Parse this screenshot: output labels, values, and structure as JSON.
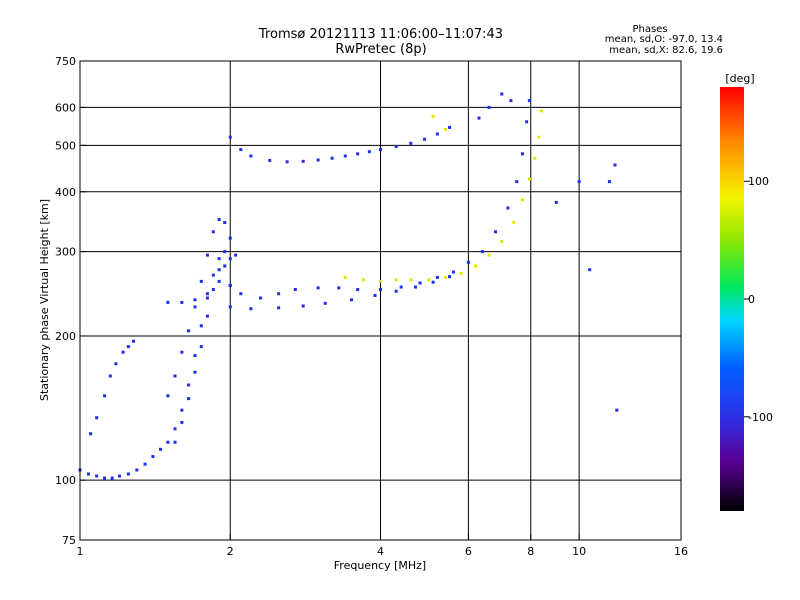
{
  "chart_data": {
    "type": "scatter",
    "title": "Tromsø 20121113 11:06:00–11:07:43",
    "subtitle": "RwPretec (8p)",
    "xlabel": "Frequency [MHz]",
    "ylabel": "Stationary phase Virtual Height [km]",
    "x_scale": "log",
    "y_scale": "log",
    "xlim": [
      1,
      16
    ],
    "ylim": [
      75,
      750
    ],
    "x_ticks": [
      1,
      2,
      4,
      6,
      8,
      10,
      16
    ],
    "x_tick_labels": [
      "1",
      "2",
      "4",
      "6",
      "8",
      "10",
      "16"
    ],
    "y_ticks": [
      75,
      100,
      200,
      300,
      400,
      500,
      600,
      750
    ],
    "y_tick_labels": [
      "75",
      "100",
      "200",
      "300",
      "400",
      "500",
      "600",
      "750"
    ],
    "grid": true,
    "stats": {
      "heading": "Phases",
      "line1": "mean, sd,O: -97.0, 13.4",
      "line2": "mean, sd,X: 82.6, 19.6"
    },
    "colorbar": {
      "label": "[deg]",
      "range": [
        -180,
        180
      ],
      "ticks": [
        100,
        0,
        -100
      ],
      "tick_labels": [
        "100",
        "0",
        "-100"
      ]
    },
    "traces": [
      {
        "phase": -100,
        "points": [
          [
            1.0,
            105
          ],
          [
            1.04,
            103
          ],
          [
            1.08,
            102
          ],
          [
            1.12,
            101
          ],
          [
            1.16,
            101
          ],
          [
            1.2,
            102
          ],
          [
            1.25,
            103
          ],
          [
            1.3,
            105
          ],
          [
            1.35,
            108
          ],
          [
            1.4,
            112
          ],
          [
            1.45,
            116
          ],
          [
            1.5,
            120
          ],
          [
            1.55,
            128
          ],
          [
            1.6,
            140
          ],
          [
            1.65,
            158
          ],
          [
            1.7,
            182
          ],
          [
            1.75,
            210
          ],
          [
            1.8,
            240
          ],
          [
            1.85,
            268
          ],
          [
            1.9,
            290
          ],
          [
            1.95,
            300
          ],
          [
            2.0,
            290
          ]
        ]
      },
      {
        "phase": -100,
        "points": [
          [
            1.05,
            125
          ],
          [
            1.08,
            135
          ],
          [
            1.12,
            150
          ],
          [
            1.15,
            165
          ],
          [
            1.18,
            175
          ],
          [
            1.22,
            185
          ],
          [
            1.25,
            190
          ],
          [
            1.28,
            195
          ]
        ]
      },
      {
        "phase": -100,
        "points": [
          [
            1.5,
            150
          ],
          [
            1.55,
            165
          ],
          [
            1.6,
            185
          ],
          [
            1.65,
            205
          ],
          [
            1.7,
            230
          ],
          [
            1.75,
            260
          ],
          [
            1.8,
            295
          ],
          [
            1.85,
            330
          ],
          [
            1.9,
            350
          ],
          [
            1.95,
            345
          ],
          [
            2.0,
            320
          ],
          [
            2.05,
            295
          ]
        ]
      },
      {
        "phase": -100,
        "points": [
          [
            1.55,
            120
          ],
          [
            1.6,
            132
          ],
          [
            1.65,
            148
          ],
          [
            1.7,
            168
          ],
          [
            1.75,
            190
          ],
          [
            1.8,
            220
          ],
          [
            1.85,
            250
          ],
          [
            1.9,
            275
          ],
          [
            1.95,
            280
          ],
          [
            2.0,
            255
          ]
        ]
      },
      {
        "phase": -100,
        "points": [
          [
            1.5,
            235
          ],
          [
            1.6,
            235
          ],
          [
            1.7,
            238
          ],
          [
            1.8,
            245
          ],
          [
            1.9,
            260
          ],
          [
            2.0,
            255
          ],
          [
            2.1,
            245
          ],
          [
            2.3,
            240
          ],
          [
            2.5,
            245
          ],
          [
            2.7,
            250
          ],
          [
            3.0,
            252
          ],
          [
            3.3,
            252
          ],
          [
            3.6,
            250
          ],
          [
            4.0,
            250
          ],
          [
            4.4,
            253
          ],
          [
            4.8,
            258
          ],
          [
            5.2,
            265
          ],
          [
            5.6,
            272
          ],
          [
            6.0,
            285
          ],
          [
            6.4,
            300
          ],
          [
            6.8,
            330
          ],
          [
            7.2,
            370
          ],
          [
            7.5,
            420
          ],
          [
            7.7,
            480
          ],
          [
            7.85,
            560
          ],
          [
            7.95,
            620
          ]
        ]
      },
      {
        "phase": -100,
        "points": [
          [
            2.0,
            230
          ],
          [
            2.2,
            228
          ],
          [
            2.5,
            229
          ],
          [
            2.8,
            231
          ],
          [
            3.1,
            234
          ],
          [
            3.5,
            238
          ],
          [
            3.9,
            243
          ],
          [
            4.3,
            248
          ],
          [
            4.7,
            253
          ],
          [
            5.1,
            259
          ],
          [
            5.5,
            266
          ]
        ]
      },
      {
        "phase": -100,
        "points": [
          [
            2.0,
            520
          ],
          [
            2.1,
            490
          ],
          [
            2.2,
            475
          ],
          [
            2.4,
            465
          ],
          [
            2.6,
            462
          ],
          [
            2.8,
            463
          ],
          [
            3.0,
            466
          ],
          [
            3.2,
            470
          ],
          [
            3.4,
            475
          ],
          [
            3.6,
            480
          ],
          [
            3.8,
            485
          ],
          [
            4.0,
            490
          ],
          [
            4.3,
            497
          ],
          [
            4.6,
            505
          ],
          [
            4.9,
            515
          ],
          [
            5.2,
            528
          ],
          [
            5.5,
            545
          ]
        ]
      },
      {
        "phase": -100,
        "points": [
          [
            6.3,
            570
          ],
          [
            6.6,
            600
          ],
          [
            7.0,
            640
          ],
          [
            7.3,
            620
          ]
        ]
      },
      {
        "phase": 100,
        "points": [
          [
            3.4,
            265
          ],
          [
            3.7,
            262
          ],
          [
            4.0,
            260
          ],
          [
            4.3,
            262
          ],
          [
            4.6,
            262
          ],
          [
            5.0,
            262
          ],
          [
            5.4,
            265
          ],
          [
            5.8,
            270
          ],
          [
            6.2,
            280
          ],
          [
            6.6,
            295
          ],
          [
            7.0,
            315
          ],
          [
            7.4,
            345
          ],
          [
            7.7,
            385
          ],
          [
            7.95,
            425
          ],
          [
            8.15,
            470
          ],
          [
            8.3,
            520
          ],
          [
            8.4,
            590
          ]
        ]
      },
      {
        "phase": 100,
        "points": [
          [
            5.1,
            575
          ],
          [
            5.4,
            540
          ]
        ]
      },
      {
        "phase": -100,
        "points": [
          [
            9.0,
            380
          ],
          [
            10.0,
            420
          ],
          [
            10.5,
            275
          ],
          [
            11.5,
            420
          ],
          [
            11.8,
            455
          ],
          [
            11.9,
            140
          ]
        ]
      }
    ]
  }
}
